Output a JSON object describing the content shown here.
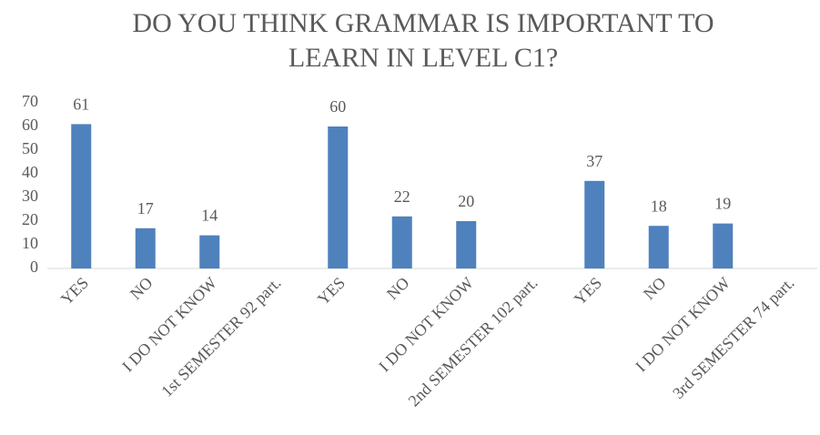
{
  "chart_data": {
    "type": "bar",
    "title": [
      "DO YOU THINK GRAMMAR IS IMPORTANT TO",
      "LEARN IN LEVEL C1?"
    ],
    "categories": [
      "YES",
      "NO",
      "I DO NOT KNOW",
      "1st SEMESTER 92 part.",
      "YES",
      "NO",
      "I DO NOT KNOW",
      "2nd SEMESTER 102 part.",
      "YES",
      "NO",
      "I DO NOT KNOW",
      "3rd SEMESTER 74 part."
    ],
    "values": [
      61,
      17,
      14,
      null,
      60,
      22,
      20,
      null,
      37,
      18,
      19,
      null
    ],
    "color": "#4f81bd",
    "ylim": [
      0,
      70
    ],
    "yticks": [
      0,
      10,
      20,
      30,
      40,
      50,
      60,
      70
    ],
    "grid": false
  }
}
